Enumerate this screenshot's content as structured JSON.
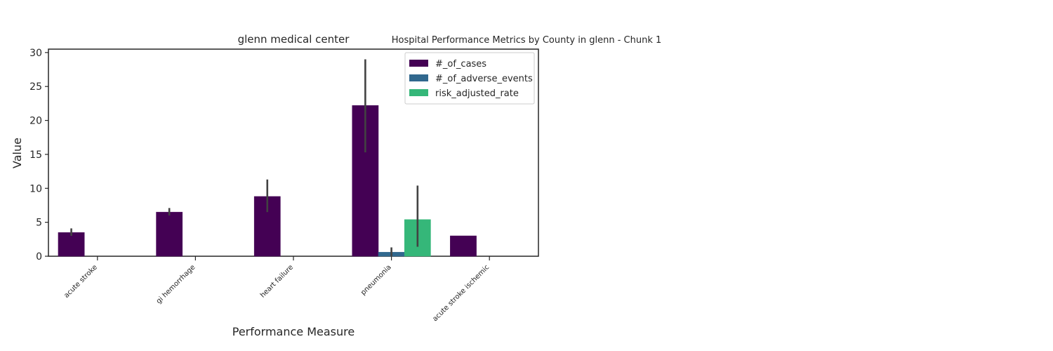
{
  "figure": {
    "suptitle": "Hospital Performance Metrics by County in glenn - Chunk 1"
  },
  "chart_data": {
    "type": "bar",
    "title": "glenn medical center",
    "xlabel": "Performance Measure",
    "ylabel": "Value",
    "ylim": [
      0,
      30.5
    ],
    "yticks": [
      0,
      5,
      10,
      15,
      20,
      25,
      30
    ],
    "grid": false,
    "legend_position": "top-right",
    "categories": [
      "acute stroke",
      "gi hemorrhage",
      "heart failure",
      "pneumonia",
      "acute stroke ischemic"
    ],
    "series": [
      {
        "name": "#_of_cases",
        "color": "#440154",
        "values": [
          3.5,
          6.5,
          8.8,
          22.2,
          3.0
        ],
        "error_low": [
          3.0,
          6.0,
          6.5,
          15.3,
          null
        ],
        "error_high": [
          4.1,
          7.1,
          11.3,
          29.0,
          null
        ]
      },
      {
        "name": "#_of_adverse_events",
        "color": "#31688e",
        "values": [
          0,
          0,
          0,
          0.6,
          0
        ],
        "error_low": [
          null,
          null,
          null,
          0.0,
          null
        ],
        "error_high": [
          null,
          null,
          null,
          1.3,
          null
        ]
      },
      {
        "name": "risk_adjusted_rate",
        "color": "#35b779",
        "values": [
          0,
          0,
          0,
          5.4,
          0
        ],
        "error_low": [
          null,
          null,
          null,
          1.4,
          null
        ],
        "error_high": [
          null,
          null,
          null,
          10.4,
          null
        ]
      }
    ]
  }
}
